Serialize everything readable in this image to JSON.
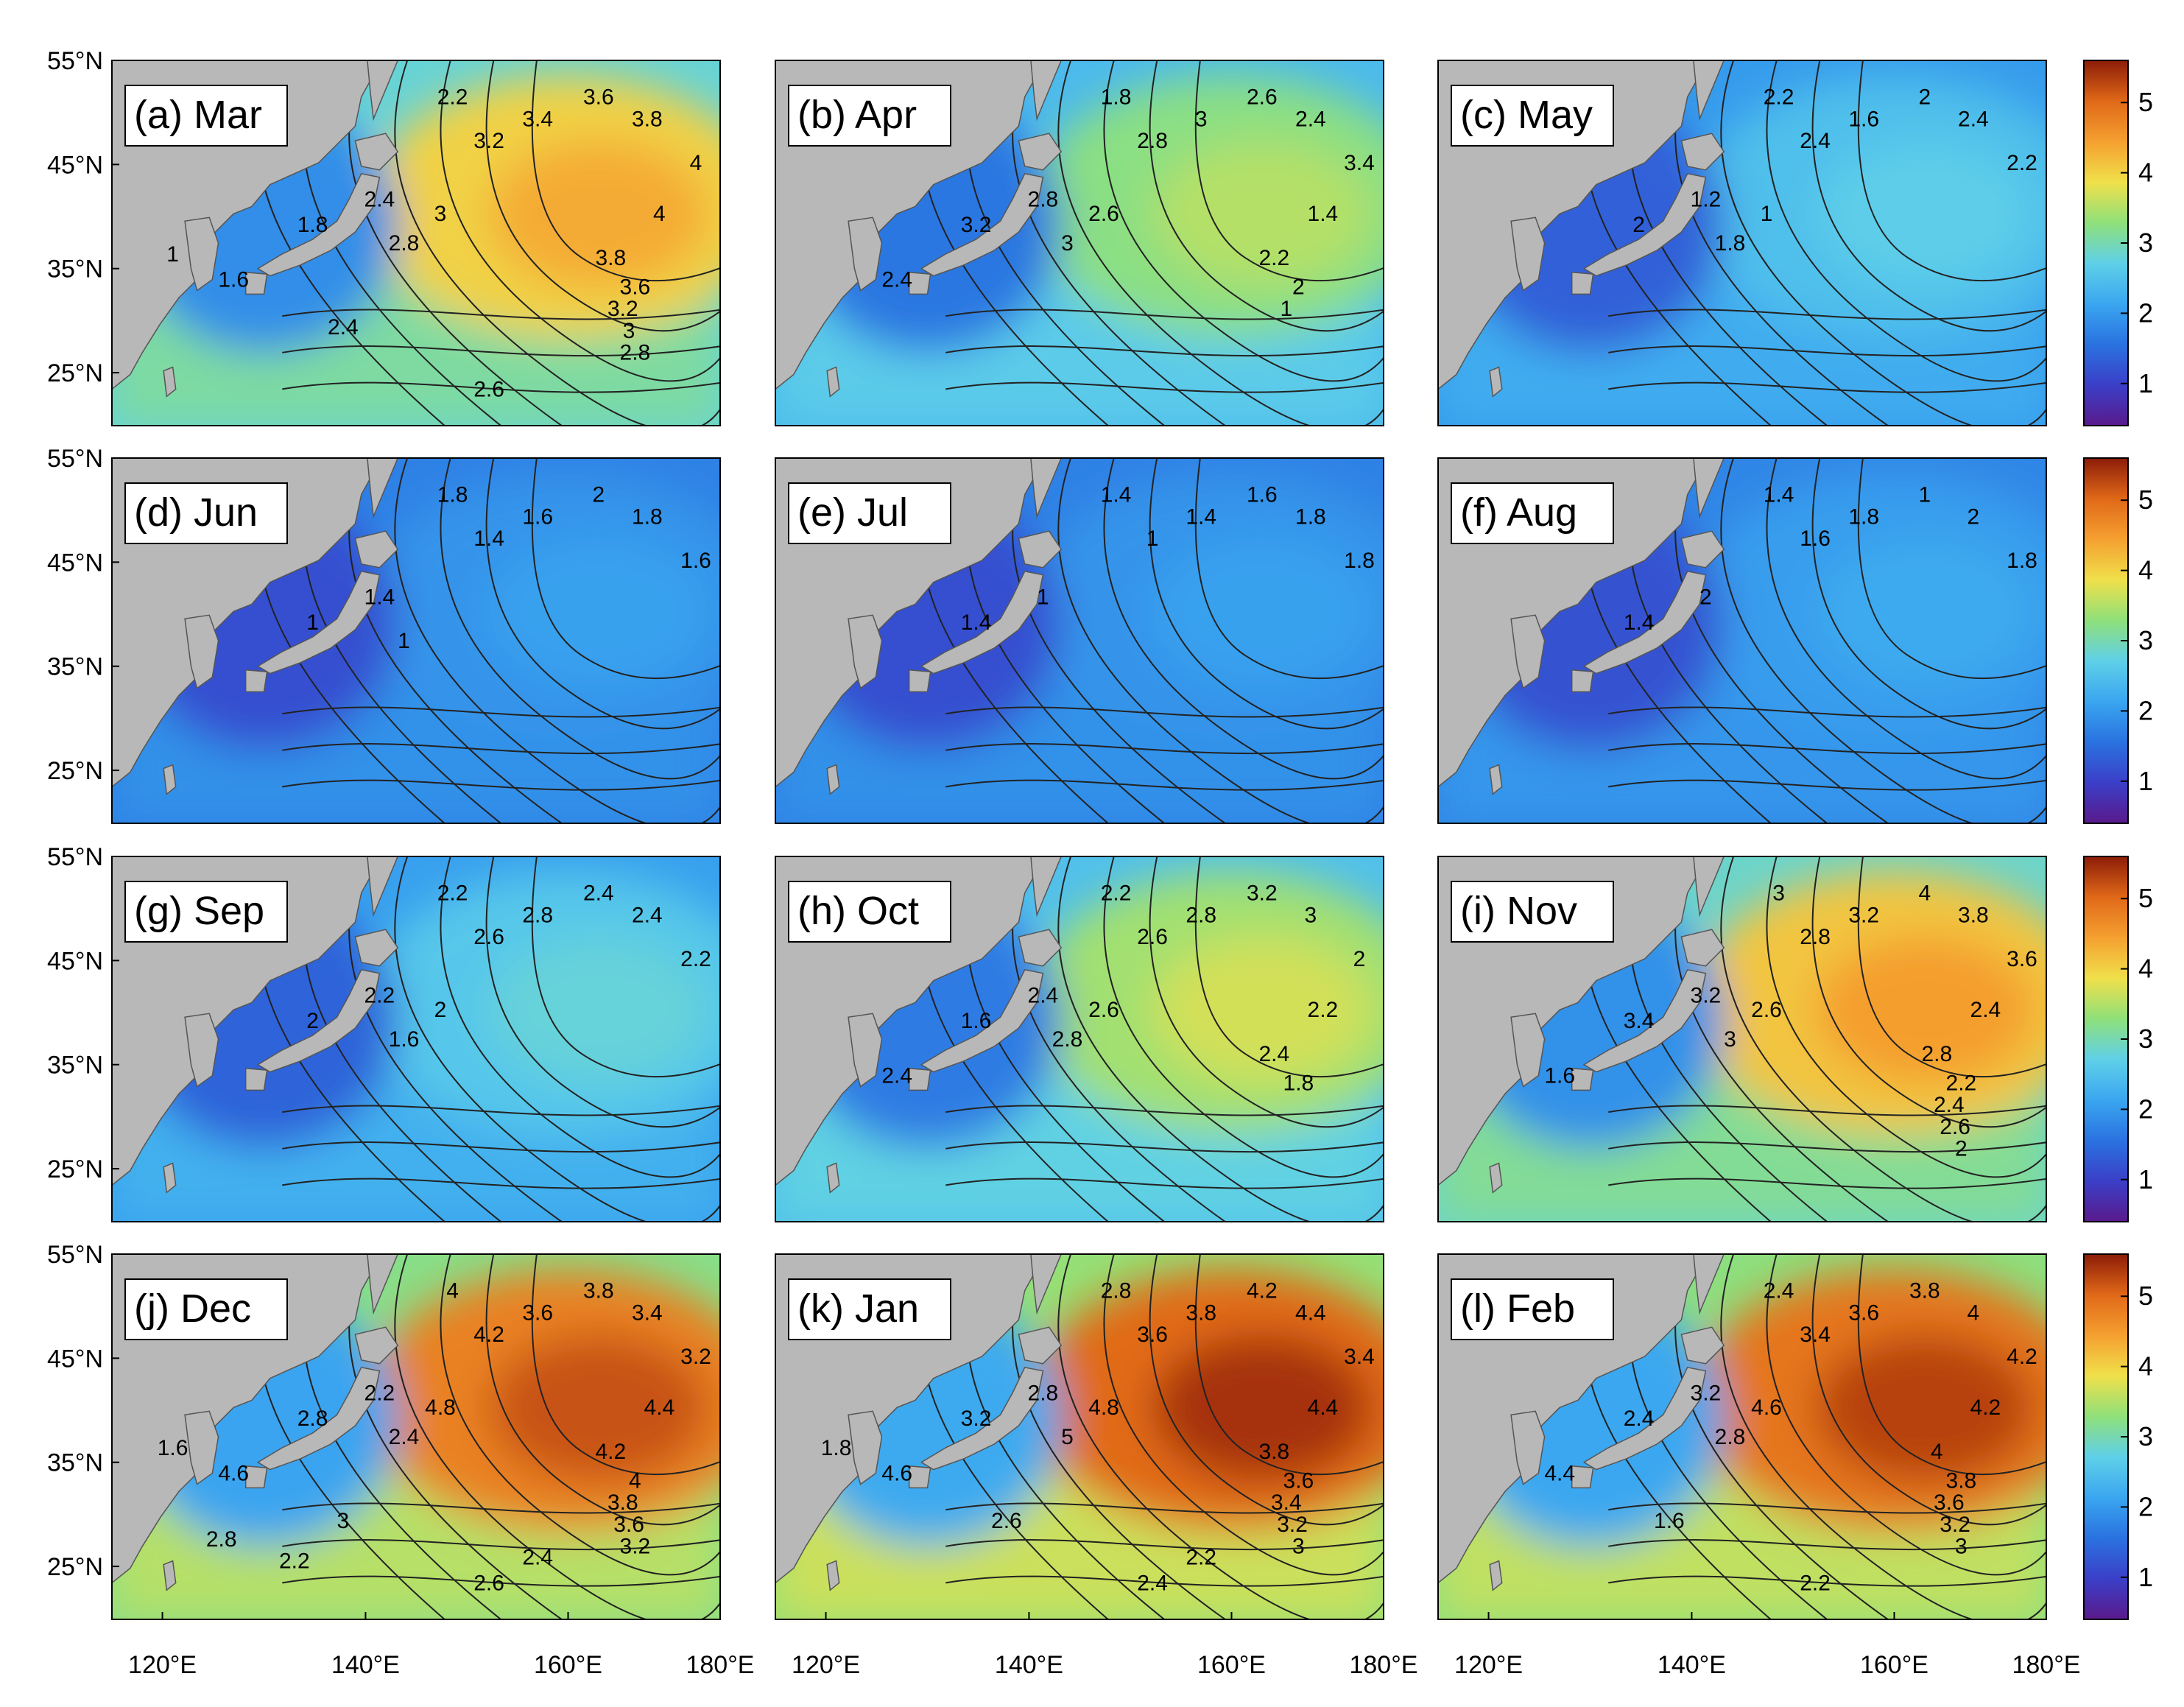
{
  "figure": {
    "lat_labels": [
      "55°N",
      "45°N",
      "35°N",
      "25°N"
    ],
    "lon_labels": [
      "120°E",
      "140°E",
      "160°E",
      "180°E"
    ],
    "colorbar_ticks": [
      "1",
      "2",
      "3",
      "4",
      "5"
    ],
    "colors": {
      "land": "#b8b8b8",
      "colormap": [
        "#5a1a8c",
        "#3b3fc8",
        "#2a72e0",
        "#3aa6f0",
        "#5fd0e8",
        "#8fe07a",
        "#f0e04a",
        "#f5a030",
        "#e06818",
        "#8c1c08"
      ]
    },
    "panels": [
      {
        "label": "(a) Mar",
        "field_level": 0.66,
        "contour_labels": [
          "2.2",
          "3.2",
          "3.4",
          "3.6",
          "3.8",
          "4",
          "1.8",
          "2.4",
          "2.8",
          "3",
          "1.6",
          "4",
          "3.8",
          "3.6",
          "3.2",
          "3",
          "2.8",
          "2.4",
          "2.6",
          "1"
        ]
      },
      {
        "label": "(b) Apr",
        "field_level": 0.52,
        "contour_labels": [
          "1.8",
          "2.8",
          "3",
          "2.6",
          "2.4",
          "3.4",
          "3.2",
          "2.8",
          "3",
          "2.6",
          "2.4",
          "1.4",
          "2.2",
          "2",
          "1"
        ]
      },
      {
        "label": "(c) May",
        "field_level": 0.38,
        "contour_labels": [
          "2.2",
          "2.4",
          "1.6",
          "2",
          "2.4",
          "2.2",
          "2",
          "1.2",
          "1.8",
          "1"
        ]
      },
      {
        "label": "(d) Jun",
        "field_level": 0.28,
        "contour_labels": [
          "1.8",
          "1.4",
          "1.6",
          "2",
          "1.8",
          "1.6",
          "1",
          "1.4",
          "1"
        ]
      },
      {
        "label": "(e) Jul",
        "field_level": 0.28,
        "contour_labels": [
          "1.4",
          "1",
          "1.4",
          "1.6",
          "1.8",
          "1.8",
          "1.4",
          "1"
        ]
      },
      {
        "label": "(f) Aug",
        "field_level": 0.3,
        "contour_labels": [
          "1.4",
          "1.6",
          "1.8",
          "1",
          "2",
          "1.8",
          "1.4",
          "2"
        ]
      },
      {
        "label": "(g) Sep",
        "field_level": 0.4,
        "contour_labels": [
          "2.2",
          "2.6",
          "2.8",
          "2.4",
          "2.4",
          "2.2",
          "2",
          "2.2",
          "1.6",
          "2"
        ]
      },
      {
        "label": "(h) Oct",
        "field_level": 0.55,
        "contour_labels": [
          "2.2",
          "2.6",
          "2.8",
          "3.2",
          "3",
          "2",
          "1.6",
          "2.4",
          "2.8",
          "2.6",
          "2.4",
          "2.2",
          "2.4",
          "1.8"
        ]
      },
      {
        "label": "(i) Nov",
        "field_level": 0.68,
        "contour_labels": [
          "3",
          "2.8",
          "3.2",
          "4",
          "3.8",
          "3.6",
          "3.4",
          "3.2",
          "3",
          "2.6",
          "1.6",
          "2.4",
          "2.8",
          "2.2",
          "2.4",
          "2.6",
          "2"
        ]
      },
      {
        "label": "(j) Dec",
        "field_level": 0.8,
        "contour_labels": [
          "4",
          "4.2",
          "3.6",
          "3.8",
          "3.4",
          "3.2",
          "2.8",
          "2.2",
          "2.4",
          "4.8",
          "4.6",
          "4.4",
          "4.2",
          "4",
          "3.8",
          "3.6",
          "3.2",
          "3",
          "2.6",
          "1.6",
          "2.4",
          "2.2",
          "2.8"
        ]
      },
      {
        "label": "(k) Jan",
        "field_level": 0.84,
        "contour_labels": [
          "2.8",
          "3.6",
          "3.8",
          "4.2",
          "4.4",
          "3.4",
          "3.2",
          "2.8",
          "5",
          "4.8",
          "4.6",
          "4.4",
          "3.8",
          "3.6",
          "3.4",
          "3.2",
          "3",
          "2.6",
          "2.4",
          "1.8",
          "2.2"
        ]
      },
      {
        "label": "(l) Feb",
        "field_level": 0.82,
        "contour_labels": [
          "2.4",
          "3.4",
          "3.6",
          "3.8",
          "4",
          "4.2",
          "2.4",
          "3.2",
          "2.8",
          "4.6",
          "4.4",
          "4.2",
          "4",
          "3.8",
          "3.6",
          "3.2",
          "3",
          "1.6",
          "2.2"
        ]
      }
    ]
  }
}
